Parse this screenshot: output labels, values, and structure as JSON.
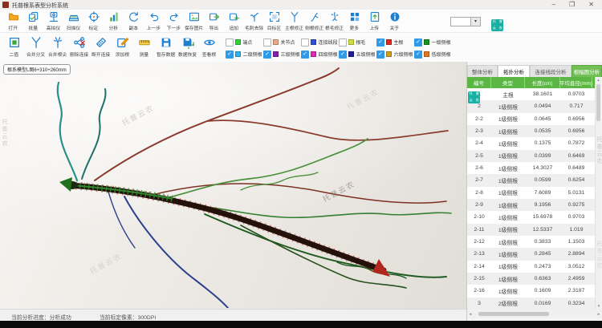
{
  "window": {
    "title": "托普根系表型分析系统",
    "minimize": "–",
    "maximize": "❐",
    "close": "✕"
  },
  "icons": {
    "chevron_down": "▾",
    "arrow_up": "▲",
    "arrow_down": "▼",
    "arrow_left": "◄",
    "arrow_right": "►",
    "check": "✓"
  },
  "watermark": {
    "text": "托普云农",
    "logo_chars": "托普云农",
    "logo_color": "#18b0a2"
  },
  "toolbar_top": {
    "items": [
      {
        "label": "打开",
        "icon": "open-folder"
      },
      {
        "label": "批量",
        "icon": "batch-pages"
      },
      {
        "label": "高拍仪",
        "icon": "doc-camera"
      },
      {
        "label": "扫描仪",
        "icon": "scanner"
      },
      {
        "label": "标定",
        "icon": "calibrate-target"
      },
      {
        "label": "分析",
        "icon": "analyze-chart"
      },
      {
        "label": "副本",
        "icon": "copy-refresh"
      },
      {
        "label": "上一步",
        "icon": "undo-arrow"
      },
      {
        "label": "下一步",
        "icon": "redo-arrow"
      },
      {
        "label": "保存图片",
        "icon": "save-image"
      },
      {
        "label": "导出",
        "icon": "export-image"
      },
      {
        "label": "追加",
        "icon": "append-image"
      },
      {
        "label": "毛刺去除",
        "icon": "deburr-branch"
      },
      {
        "label": "目标区",
        "icon": "target-area"
      },
      {
        "label": "主根修正",
        "icon": "mainroot-fix"
      },
      {
        "label": "侧根修正",
        "icon": "lateralroot-fix"
      },
      {
        "label": "根毛修正",
        "icon": "roothair-fix"
      },
      {
        "label": "更多",
        "icon": "more-grid"
      },
      {
        "label": "上传",
        "icon": "upload-page"
      },
      {
        "label": "关于",
        "icon": "about-info"
      }
    ]
  },
  "toolbar_edit": {
    "items": [
      {
        "label": "二值",
        "icon": "binary-square"
      },
      {
        "label": "合并分叉",
        "icon": "merge-fork"
      },
      {
        "label": "合并根尖",
        "icon": "merge-tip"
      },
      {
        "label": "删除连接",
        "icon": "delete-connection"
      },
      {
        "label": "断开连接",
        "icon": "break-connection"
      },
      {
        "label": "添加根",
        "icon": "add-root"
      },
      {
        "label": "测量",
        "icon": "measure-ruler"
      },
      {
        "label": "暂存数据",
        "icon": "store-data"
      },
      {
        "label": "数据恢复",
        "icon": "restore-data"
      },
      {
        "label": "查看根",
        "icon": "view-root-eye"
      }
    ]
  },
  "layers": {
    "row1": [
      {
        "label": "端点",
        "color": "#35d43a",
        "checked": false
      },
      {
        "label": "关节点",
        "color": "#eba98c",
        "checked": false
      },
      {
        "label": "连接线段",
        "color": "#2d50dd",
        "checked": false
      },
      {
        "label": "根毛",
        "color": "#cfe03a",
        "checked": false
      },
      {
        "label": "主根",
        "color": "#e52620",
        "checked": true
      },
      {
        "label": "一级侧根",
        "color": "#16951c",
        "checked": true
      }
    ],
    "row2": [
      {
        "label": "二级侧根",
        "color": "#2fb3ea",
        "checked": true
      },
      {
        "label": "三级侧根",
        "color": "#8420a8",
        "checked": true
      },
      {
        "label": "四级侧根",
        "color": "#e426b4",
        "checked": true
      },
      {
        "label": "五级侧根",
        "color": "#211d96",
        "checked": true
      },
      {
        "label": "六级侧根",
        "color": "#cfa017",
        "checked": true
      },
      {
        "label": "低级侧根",
        "color": "#e2761e",
        "checked": true
      }
    ]
  },
  "canvas": {
    "file_tab": "根系模型L图6+310+260mm"
  },
  "panel": {
    "tabs": [
      {
        "label": "整体分析",
        "active": false,
        "green": false
      },
      {
        "label": "拓扑分析",
        "active": true,
        "green": false
      },
      {
        "label": "连接线段分析",
        "active": false,
        "green": false
      },
      {
        "label": "根幅图分析",
        "active": false,
        "green": true
      }
    ],
    "table": {
      "headers": [
        "编号",
        "类型",
        "长度(cm)",
        "平均直径(mm)",
        "投"
      ],
      "rows": [
        [
          "1",
          "主根",
          "38.1601",
          "0.9703"
        ],
        [
          "2",
          "1级侧根",
          "0.0494",
          "0.717"
        ],
        [
          "2-2",
          "1级侧根",
          "0.0645",
          "0.6956"
        ],
        [
          "2-3",
          "1级侧根",
          "0.0535",
          "0.6956"
        ],
        [
          "2-4",
          "1级侧根",
          "0.1375",
          "0.7872"
        ],
        [
          "2-5",
          "1级侧根",
          "0.0399",
          "0.6469"
        ],
        [
          "2-6",
          "1级侧根",
          "14.3027",
          "0.6489"
        ],
        [
          "2-7",
          "1级侧根",
          "0.0599",
          "0.6254"
        ],
        [
          "2-8",
          "1级侧根",
          "7.6089",
          "5.0131"
        ],
        [
          "2-9",
          "1级侧根",
          "9.1956",
          "0.9275"
        ],
        [
          "2-10",
          "1级侧根",
          "15.6978",
          "0.9703"
        ],
        [
          "2-11",
          "1级侧根",
          "12.5337",
          "1.019"
        ],
        [
          "2-12",
          "1级侧根",
          "0.3833",
          "1.1503"
        ],
        [
          "2-13",
          "1级侧根",
          "0.2845",
          "2.8894"
        ],
        [
          "2-14",
          "1级侧根",
          "0.2473",
          "3.0512"
        ],
        [
          "2-15",
          "1级侧根",
          "0.6363",
          "2.4959"
        ],
        [
          "2-16",
          "1级侧根",
          "0.1609",
          "2.3187"
        ],
        [
          "3",
          "2级侧根",
          "0.0169",
          "0.3234"
        ]
      ]
    }
  },
  "statusbar": {
    "progress_label": "当前分析进度：",
    "progress_value": "分析成功",
    "dpi_label": "当前标定像素：",
    "dpi_value": "300DPI"
  }
}
